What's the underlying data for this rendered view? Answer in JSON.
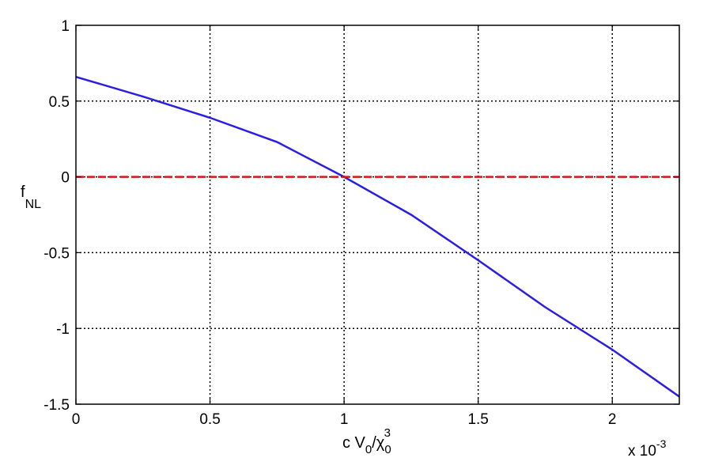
{
  "chart_data": {
    "type": "line",
    "title": "",
    "xlabel": {
      "main": "c V",
      "sub1": "0",
      "slash": "/χ",
      "sub2": "0",
      "sup": "3"
    },
    "ylabel": {
      "main": "f",
      "sub": "NL"
    },
    "x_multiplier": {
      "base": "x 10",
      "exp": "-3"
    },
    "xlim": [
      0,
      2.25
    ],
    "ylim": [
      -1.5,
      1
    ],
    "grid": true,
    "x_ticks": [
      0,
      0.5,
      1,
      1.5,
      2
    ],
    "x_tick_labels": [
      "0",
      "0.5",
      "1",
      "1.5",
      "2"
    ],
    "y_ticks": [
      -1.5,
      -1,
      -0.5,
      0,
      0.5,
      1
    ],
    "y_tick_labels": [
      "-1.5",
      "-1",
      "-0.5",
      "0",
      "0.5",
      "1"
    ],
    "series": [
      {
        "color": "#2a1ee6",
        "style": "solid",
        "x": [
          0,
          0.25,
          0.5,
          0.75,
          1.0,
          1.25,
          1.5,
          1.75,
          2.0,
          2.25
        ],
        "y": [
          0.66,
          0.53,
          0.39,
          0.23,
          0.0,
          -0.25,
          -0.55,
          -0.86,
          -1.14,
          -1.45
        ]
      },
      {
        "color": "#e01010",
        "style": "dashed",
        "x": [
          0,
          2.25
        ],
        "y": [
          0,
          0
        ]
      }
    ]
  }
}
